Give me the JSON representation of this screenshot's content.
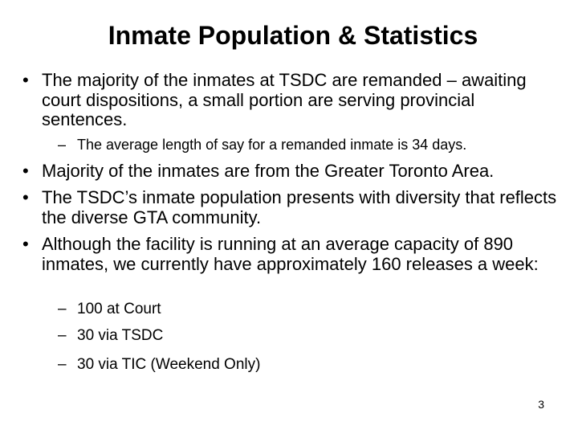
{
  "slide": {
    "title": "Inmate Population & Statistics",
    "bullet_marker": "•",
    "dash_marker": "–",
    "bullets": [
      "The majority of the inmates at TSDC are remanded – awaiting court dispositions, a small portion are serving provincial sentences.",
      "Majority of the inmates are from the Greater Toronto Area.",
      "The TSDC’s inmate population presents with diversity that reflects the diverse GTA community.",
      "Although the facility is running at an average capacity of 890 inmates, we currently have approximately 160 releases a week:"
    ],
    "sub_bullets": [
      "The average length of say for a remanded inmate is 34 days.",
      "100 at Court",
      "30 via TSDC",
      "30 via TIC (Weekend Only)"
    ],
    "page_number": "3"
  }
}
